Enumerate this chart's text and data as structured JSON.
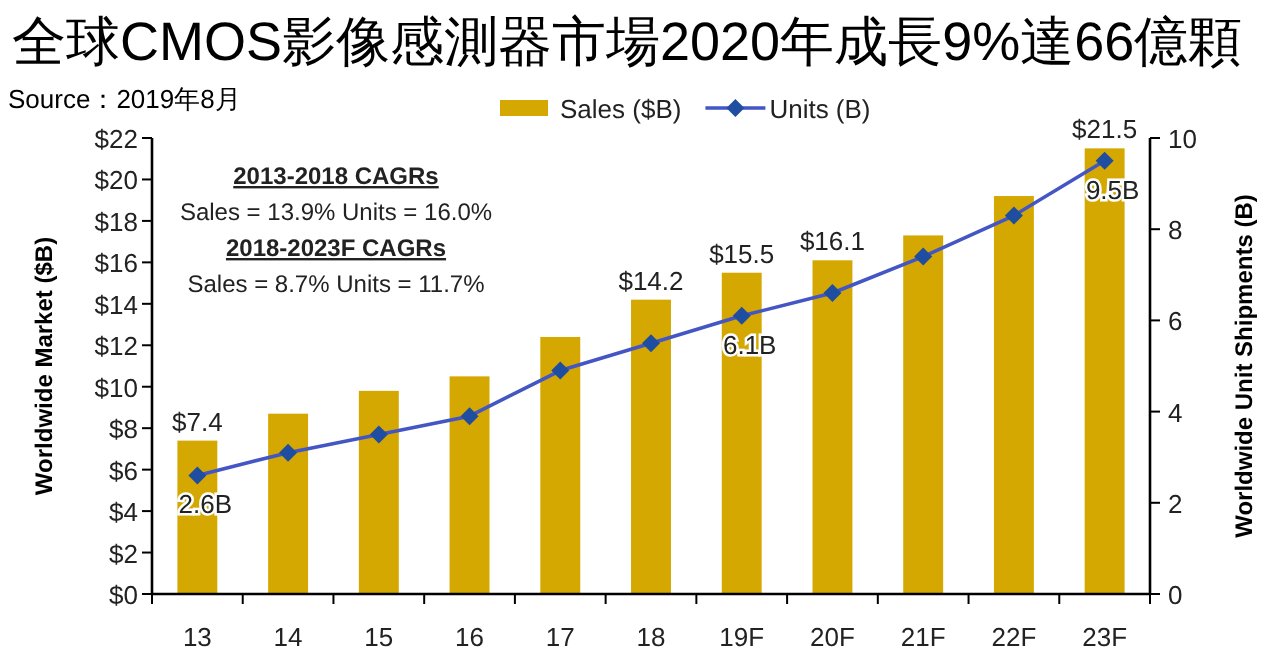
{
  "chart_data": {
    "type": "bar",
    "title": "全球CMOS影像感測器市場2020年成長9%達66億顆",
    "annotations": [
      "Source：2019年8月",
      "2013-2018 CAGRs",
      "Sales = 13.9%  Units = 16.0%",
      "2018-2023F CAGRs",
      "Sales = 8.7%  Units = 11.7%"
    ],
    "categories": [
      "13",
      "14",
      "15",
      "16",
      "17",
      "18",
      "19F",
      "20F",
      "21F",
      "22F",
      "23F"
    ],
    "series": [
      {
        "name": "Sales ($B)",
        "color": "#d4a800",
        "values": [
          7.4,
          8.7,
          9.8,
          10.5,
          12.4,
          14.2,
          15.5,
          16.1,
          17.3,
          19.2,
          21.5
        ],
        "value_labels": [
          "$7.4",
          null,
          null,
          null,
          null,
          "$14.2",
          "$15.5",
          "$16.1",
          null,
          null,
          "$21.5"
        ]
      },
      {
        "name": "Units (B)",
        "type": "line",
        "axis": "y2",
        "color": "#4356c4",
        "marker": "diamond",
        "values": [
          2.6,
          3.1,
          3.5,
          3.9,
          4.9,
          5.5,
          6.1,
          6.6,
          7.4,
          8.3,
          9.5
        ],
        "value_labels": [
          "2.6B",
          null,
          null,
          null,
          null,
          null,
          "6.1B",
          null,
          null,
          null,
          "9.5B"
        ]
      }
    ],
    "ylabel": "Worldwide Market ($B)",
    "y2label": "Worldwide Unit Shipments (B)",
    "ylim": [
      0,
      22
    ],
    "yticks": [
      {
        "value": 0,
        "label": "$0"
      },
      {
        "value": 2,
        "label": "$2"
      },
      {
        "value": 4,
        "label": "$4"
      },
      {
        "value": 6,
        "label": "$6"
      },
      {
        "value": 8,
        "label": "$8"
      },
      {
        "value": 10,
        "label": "$10"
      },
      {
        "value": 12,
        "label": "$12"
      },
      {
        "value": 14,
        "label": "$14"
      },
      {
        "value": 16,
        "label": "$16"
      },
      {
        "value": 18,
        "label": "$18"
      },
      {
        "value": 20,
        "label": "$20"
      },
      {
        "value": 22,
        "label": "$22"
      }
    ],
    "y2lim": [
      0,
      10
    ],
    "y2ticks": [
      0,
      2,
      4,
      6,
      8,
      10
    ],
    "legend": "top",
    "grid": false
  }
}
